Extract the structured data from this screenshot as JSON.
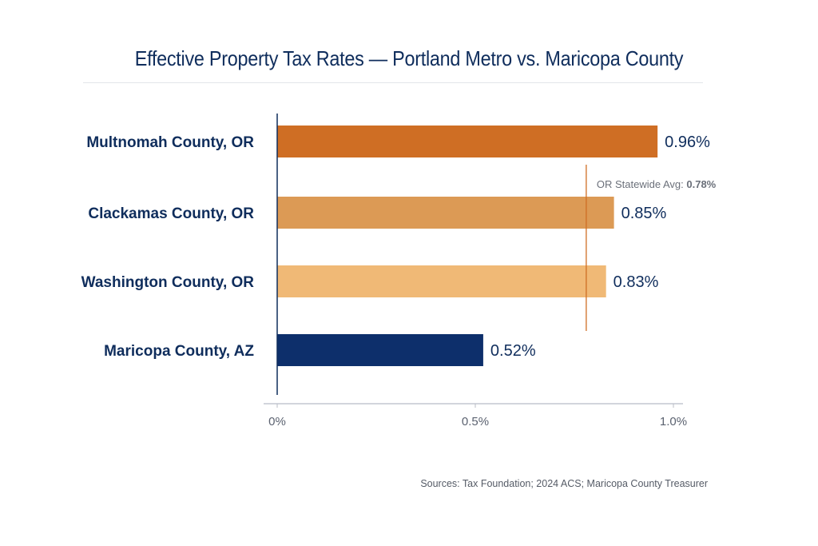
{
  "chart_data": {
    "type": "bar",
    "orientation": "horizontal",
    "title": "Effective Property Tax Rates — Portland Metro vs. Maricopa County",
    "categories": [
      "Multnomah County, OR",
      "Clackamas County, OR",
      "Washington County, OR",
      "Maricopa County, AZ"
    ],
    "values": [
      0.96,
      0.85,
      0.83,
      0.52
    ],
    "value_labels": [
      "0.96%",
      "0.85%",
      "0.83%",
      "0.52%"
    ],
    "colors": [
      "#cf6e24",
      "#dc9a55",
      "#f0b976",
      "#0d2f6b"
    ],
    "xlim": [
      0,
      1.0
    ],
    "xticks": [
      0,
      0.5,
      1.0
    ],
    "xtick_labels": [
      "0%",
      "0.5%",
      "1.0%"
    ],
    "xlabel": "",
    "ylabel": "",
    "grid": false,
    "reference_line": {
      "label_prefix": "OR Statewide Avg:",
      "label_value": "0.78%",
      "value": 0.78,
      "color": "#cf6e24"
    },
    "source": "Sources: Tax Foundation; 2024 ACS; Maricopa County Treasurer"
  }
}
